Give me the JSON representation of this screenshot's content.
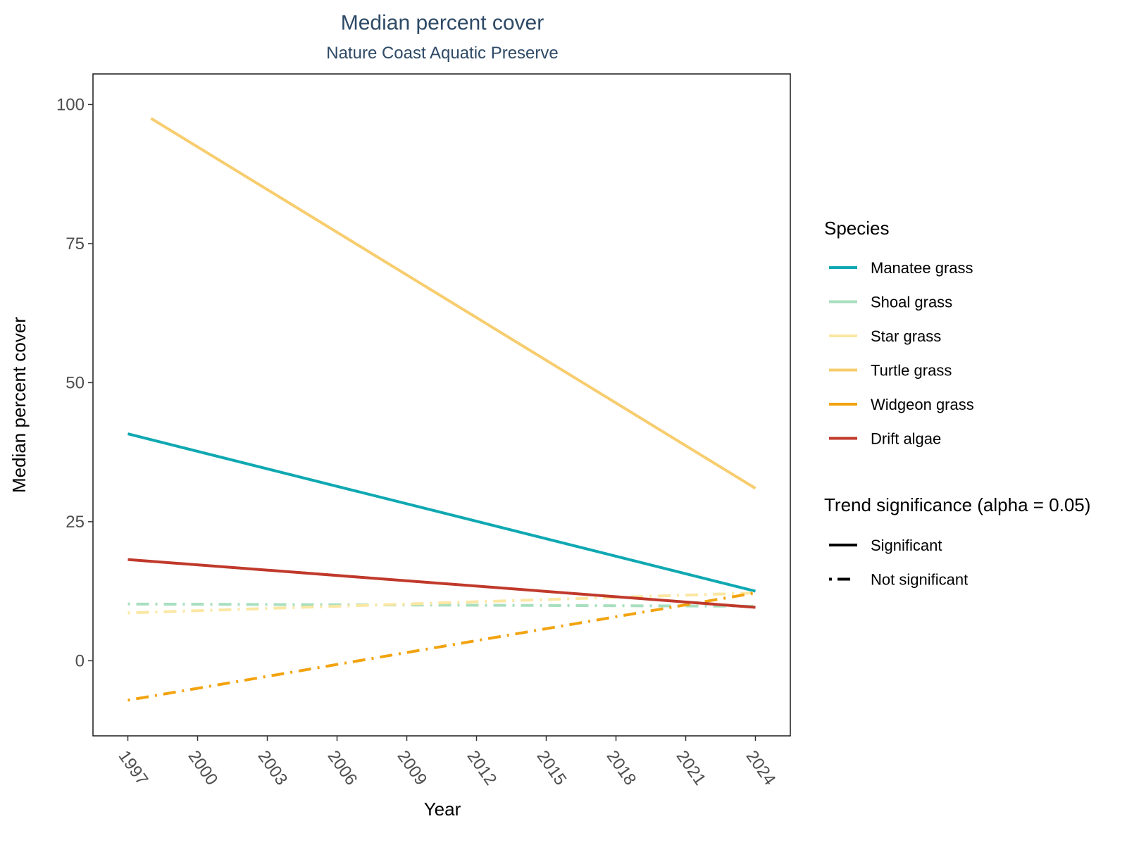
{
  "chart_data": {
    "type": "line",
    "title": "Median percent cover",
    "subtitle": "Nature Coast Aquatic Preserve",
    "xlabel": "Year",
    "ylabel": "Median percent cover",
    "xlim": [
      1995.5,
      2025.5
    ],
    "ylim": [
      -13.5,
      105.5
    ],
    "xticks": [
      "1997",
      "2000",
      "2003",
      "2006",
      "2009",
      "2012",
      "2015",
      "2018",
      "2021",
      "2024"
    ],
    "yticks": [
      "0",
      "25",
      "50",
      "75",
      "100"
    ],
    "grid": false,
    "legend_position": "right",
    "legend_species_title": "Species",
    "legend_trend_title": "Trend significance (alpha = 0.05)",
    "series": [
      {
        "name": "Manatee grass",
        "color": "#0fa8b2",
        "significant": true,
        "x": [
          1997,
          2024
        ],
        "y": [
          40.8,
          12.5
        ]
      },
      {
        "name": "Shoal grass",
        "color": "#a8dfbf",
        "significant": false,
        "x": [
          1997,
          2024
        ],
        "y": [
          10.2,
          9.8
        ]
      },
      {
        "name": "Star grass",
        "color": "#fbe7a3",
        "significant": false,
        "x": [
          1997,
          2024
        ],
        "y": [
          8.6,
          12.2
        ]
      },
      {
        "name": "Turtle grass",
        "color": "#f7cd6f",
        "significant": true,
        "x": [
          1998,
          2024
        ],
        "y": [
          97.5,
          31.0
        ]
      },
      {
        "name": "Widgeon grass",
        "color": "#f2a30f",
        "significant": false,
        "x": [
          1997,
          2024
        ],
        "y": [
          -7.1,
          12.2
        ]
      },
      {
        "name": "Drift algae",
        "color": "#c0392b",
        "significant": true,
        "x": [
          1997,
          2024
        ],
        "y": [
          18.2,
          9.6
        ]
      }
    ],
    "trend_legend": [
      {
        "label": "Significant",
        "style": "solid"
      },
      {
        "label": "Not significant",
        "style": "dotdash"
      }
    ]
  }
}
